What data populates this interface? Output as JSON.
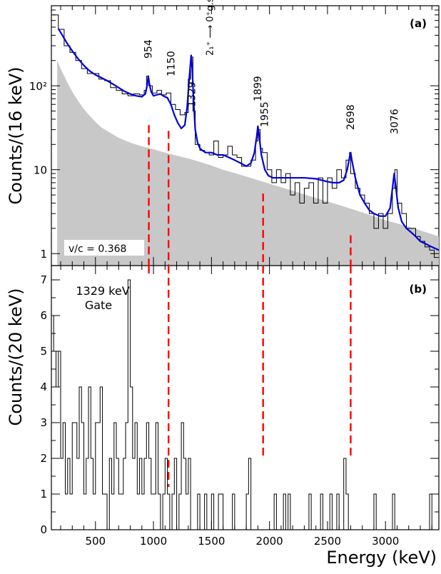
{
  "chart_data": [
    {
      "panel_label": "(a)",
      "type": "line",
      "yscale": "log",
      "ylabel": "Counts/(16 keV)",
      "xlim": [
        120,
        3460
      ],
      "ylim": [
        0.72,
        900
      ],
      "y_tick_labels": [
        "1",
        "10",
        "10²"
      ],
      "y_tick_values": [
        1,
        10,
        100
      ],
      "annotation": "v/c = 0.368",
      "transition_label": {
        "energy": "1329",
        "text": "2₁⁺ ⟶ 0⁺g.s."
      },
      "peak_labels": [
        "954",
        "1150",
        "1329",
        "1899",
        "1955",
        "2698",
        "3076"
      ],
      "series": [
        {
          "kind": "histogram",
          "color": "#000000",
          "x": [
            130,
            180,
            230,
            280,
            330,
            380,
            430,
            480,
            530,
            580,
            630,
            680,
            730,
            780,
            830,
            880,
            920,
            940,
            960,
            990,
            1030,
            1070,
            1110,
            1150,
            1190,
            1230,
            1270,
            1300,
            1320,
            1340,
            1360,
            1400,
            1440,
            1480,
            1520,
            1560,
            1600,
            1640,
            1680,
            1720,
            1760,
            1800,
            1840,
            1880,
            1900,
            1920,
            1940,
            1980,
            2020,
            2060,
            2100,
            2140,
            2180,
            2220,
            2260,
            2300,
            2340,
            2380,
            2420,
            2460,
            2500,
            2540,
            2580,
            2620,
            2660,
            2690,
            2700,
            2740,
            2780,
            2820,
            2860,
            2900,
            2940,
            2980,
            3020,
            3060,
            3080,
            3100,
            3140,
            3180,
            3220,
            3260,
            3300,
            3340,
            3380,
            3420,
            3450
          ],
          "y": [
            700,
            470,
            300,
            250,
            200,
            160,
            140,
            140,
            120,
            115,
            95,
            88,
            80,
            76,
            80,
            78,
            88,
            130,
            100,
            82,
            88,
            78,
            82,
            60,
            52,
            45,
            48,
            120,
            220,
            50,
            20,
            17,
            16,
            15,
            22,
            14,
            15,
            19,
            15,
            14,
            11,
            11,
            13,
            22,
            30,
            18,
            16,
            10,
            7,
            10,
            7,
            9,
            5,
            7,
            4,
            6,
            7,
            4,
            8,
            4,
            8,
            6,
            10,
            8,
            13,
            16,
            9,
            6,
            5,
            4,
            3,
            2,
            3,
            2,
            3,
            6,
            10,
            4,
            3,
            2,
            2,
            1.6,
            1.4,
            1.2,
            1.1,
            0.9,
            0.9
          ]
        },
        {
          "kind": "fit",
          "color": "#0000dd",
          "x": [
            180,
            250,
            300,
            350,
            400,
            450,
            500,
            550,
            600,
            650,
            700,
            750,
            800,
            850,
            900,
            930,
            945,
            955,
            965,
            980,
            1000,
            1030,
            1060,
            1090,
            1120,
            1150,
            1180,
            1210,
            1240,
            1270,
            1290,
            1310,
            1325,
            1335,
            1345,
            1360,
            1380,
            1400,
            1420,
            1450,
            1500,
            1550,
            1600,
            1650,
            1700,
            1750,
            1800,
            1840,
            1870,
            1890,
            1900,
            1910,
            1930,
            1960,
            1990,
            2030,
            2100,
            2200,
            2300,
            2400,
            2500,
            2550,
            2600,
            2640,
            2670,
            2690,
            2700,
            2710,
            2740,
            2780,
            2820,
            2860,
            2900,
            2950,
            3000,
            3040,
            3060,
            3075,
            3090,
            3110,
            3140,
            3180,
            3220,
            3260,
            3300,
            3350,
            3400,
            3460
          ],
          "y": [
            480,
            330,
            260,
            210,
            175,
            150,
            135,
            125,
            115,
            105,
            95,
            86,
            80,
            76,
            74,
            80,
            100,
            130,
            105,
            85,
            76,
            78,
            80,
            75,
            72,
            60,
            45,
            36,
            31,
            34,
            55,
            130,
            230,
            150,
            70,
            30,
            21,
            18,
            17,
            16,
            16,
            15,
            15,
            14,
            13,
            12,
            11,
            12,
            16,
            25,
            33,
            26,
            15,
            10,
            8.5,
            8,
            8,
            8,
            8,
            7.8,
            7.2,
            7,
            7,
            7.5,
            10,
            14,
            16,
            13,
            8,
            5,
            4,
            3.3,
            3,
            2.8,
            2.8,
            3.5,
            6,
            9,
            6,
            3.5,
            2.4,
            2,
            1.8,
            1.6,
            1.4,
            1.3,
            1.2,
            1.1
          ]
        },
        {
          "kind": "background",
          "color": "#c8c8c8",
          "x": [
            170,
            200,
            250,
            300,
            350,
            400,
            450,
            500,
            550,
            600,
            700,
            800,
            900,
            1000,
            1100,
            1200,
            1300,
            1400,
            1500,
            1600,
            1800,
            2000,
            2200,
            2400,
            2600,
            2800,
            3000,
            3200,
            3460
          ],
          "y": [
            200,
            160,
            115,
            85,
            66,
            53,
            44,
            37,
            32,
            29,
            24,
            21,
            19,
            17.5,
            16,
            14.7,
            13.6,
            12.4,
            11.2,
            10,
            8.3,
            6.8,
            5.6,
            4.6,
            3.8,
            3.1,
            2.5,
            2.1,
            1.6
          ]
        }
      ]
    },
    {
      "panel_label": "(b)",
      "type": "line",
      "yscale": "linear",
      "gate_label": [
        "1329 keV",
        "Gate"
      ],
      "ylabel": "Counts/(20 keV)",
      "xlabel": "Energy (keV)",
      "xlim": [
        120,
        3460
      ],
      "ylim": [
        0,
        7.4
      ],
      "x_ticks": [
        500,
        1000,
        1500,
        2000,
        2500,
        3000
      ],
      "y_ticks": [
        0,
        1,
        2,
        3,
        4,
        5,
        6,
        7
      ],
      "series": [
        {
          "kind": "histogram",
          "color": "#000000",
          "counts": [
            6,
            5,
            4,
            5,
            2,
            3,
            1,
            2,
            1,
            3,
            3,
            2,
            4,
            3,
            1,
            2,
            4,
            2,
            1,
            3,
            3,
            4,
            1,
            1,
            0,
            2,
            1,
            3,
            2,
            1,
            1,
            2,
            3,
            7,
            4,
            2,
            3,
            1,
            2,
            1,
            2,
            3,
            2,
            1,
            1,
            3,
            1,
            0,
            1,
            2,
            1,
            0,
            1,
            2,
            0,
            1,
            3,
            2,
            1,
            2,
            0,
            0,
            0,
            1,
            0,
            0,
            1,
            0,
            0,
            1,
            0,
            0,
            1,
            1,
            0,
            0,
            0,
            0,
            1,
            0,
            0,
            0,
            0,
            0,
            1,
            2,
            0,
            0,
            0,
            0,
            0,
            0,
            0,
            0,
            0,
            0,
            1,
            0,
            0,
            0,
            1,
            0,
            1,
            0,
            0,
            0,
            0,
            0,
            0,
            0,
            0,
            1,
            0,
            0,
            0,
            0,
            1,
            0,
            0,
            0,
            1,
            0,
            0,
            1,
            0,
            0,
            2,
            1,
            0,
            0,
            0,
            0,
            0,
            0,
            0,
            0,
            0,
            0,
            0,
            1,
            0,
            0,
            0,
            0,
            0,
            0,
            0,
            1,
            0,
            0,
            0,
            0,
            0,
            0,
            0,
            0,
            0,
            0,
            0,
            0,
            0,
            0,
            0,
            1,
            0
          ]
        }
      ]
    }
  ],
  "marker_lines": {
    "color": "#ff0000",
    "positions": [
      {
        "x": 960,
        "top_a": 34
      },
      {
        "x": 1130,
        "top_a": 29
      },
      {
        "x": 1945,
        "top_a": 5.2
      },
      {
        "x": 2700,
        "top_a": 1.65
      }
    ],
    "panel_b_tops": [
      null,
      1.2,
      2.0,
      2.0
    ]
  }
}
